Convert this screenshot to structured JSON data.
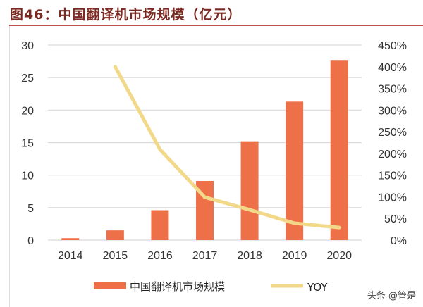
{
  "title": "图46：中国翻译机市场规模（亿元）",
  "watermark": "头条 @管是",
  "chart_data": {
    "type": "bar+line",
    "categories": [
      "2014",
      "2015",
      "2016",
      "2017",
      "2018",
      "2019",
      "2020"
    ],
    "series": [
      {
        "name": "中国翻译机市场规模",
        "type": "bar",
        "axis": "left",
        "color": "#EE7049",
        "values": [
          0.3,
          1.5,
          4.6,
          9.1,
          15.2,
          21.3,
          27.7
        ]
      },
      {
        "name": "YOY",
        "type": "line",
        "axis": "right",
        "color": "#F2D98A",
        "values": [
          null,
          4.0,
          2.09,
          0.99,
          0.7,
          0.39,
          0.29
        ]
      }
    ],
    "left_axis": {
      "ylim": [
        0,
        30
      ],
      "ticks": [
        "0",
        "5",
        "10",
        "15",
        "20",
        "25",
        "30"
      ]
    },
    "right_axis": {
      "ylim": [
        0,
        4.5
      ],
      "ticks": [
        "0%",
        "50%",
        "100%",
        "150%",
        "200%",
        "250%",
        "300%",
        "350%",
        "400%",
        "450%"
      ]
    },
    "grid": true,
    "legend": "bottom"
  }
}
